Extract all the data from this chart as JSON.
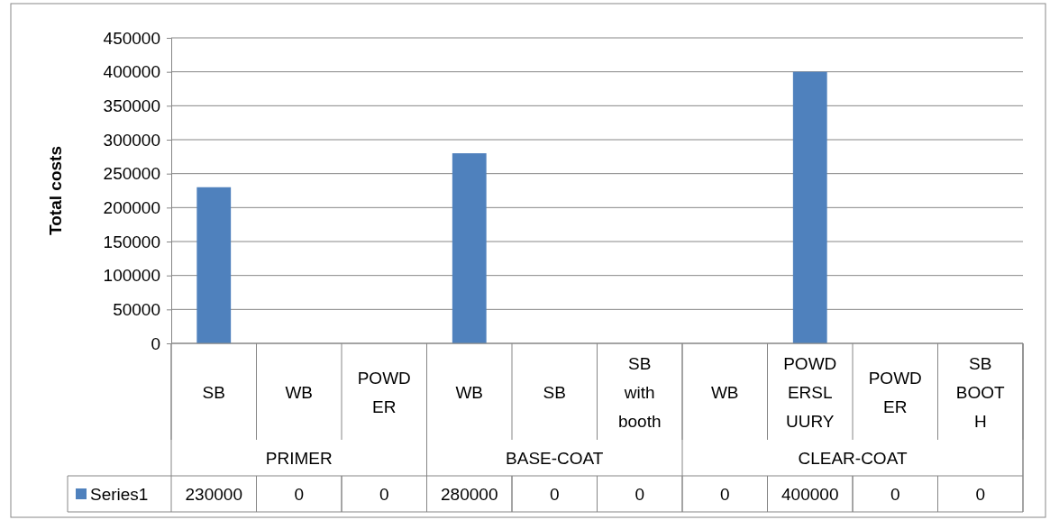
{
  "chart_data": {
    "type": "bar",
    "ylabel": "Total costs",
    "categories": [
      "SB",
      "WB",
      "POWDER",
      "WB",
      "SB",
      "SB with booth",
      "WB",
      "POWDERSLUURY",
      "POWDER",
      "SB BOOTH"
    ],
    "series": [
      {
        "name": "Series1",
        "color": "#4f81bd",
        "values": [
          230000,
          0,
          0,
          280000,
          0,
          0,
          0,
          400000,
          0,
          0
        ]
      }
    ],
    "ylim": [
      0,
      450000
    ],
    "yticks": [
      0,
      50000,
      100000,
      150000,
      200000,
      250000,
      300000,
      350000,
      400000,
      450000
    ],
    "grid": "y",
    "legend": "bottom",
    "data_labels": true,
    "annotations": [
      "PRIMER",
      "BASE-COAT",
      "CLEAR-COAT"
    ]
  }
}
